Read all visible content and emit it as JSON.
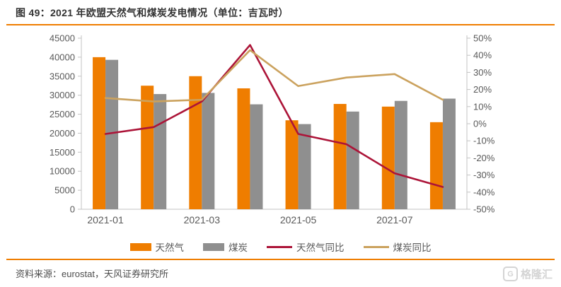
{
  "header": {
    "title": "图 49：2021 年欧盟天然气和煤炭发电情况（单位：吉瓦时）"
  },
  "colors": {
    "accent_orange": "#EF7D00",
    "bar_gas": "#EF7D00",
    "bar_coal": "#8F8F8F",
    "line_gas_yoy": "#AC1438",
    "line_coal_yoy": "#CBA25E",
    "axis_line": "#C3C3C3",
    "tick_text": "#595959"
  },
  "chart_data": {
    "type": "combo-bar-line",
    "title": "2021 年欧盟天然气和煤炭发电情况",
    "unit": "吉瓦时",
    "grid": false,
    "legend_position": "bottom",
    "categories": [
      "2021-01",
      "2021-02",
      "2021-03",
      "2021-04",
      "2021-05",
      "2021-06",
      "2021-07",
      "2021-08"
    ],
    "bar_series": [
      {
        "name": "天然气",
        "color": "#EF7D00",
        "axis": "left",
        "values": [
          40000,
          32500,
          35000,
          31800,
          23400,
          27700,
          27000,
          22900
        ]
      },
      {
        "name": "煤炭",
        "color": "#8F8F8F",
        "axis": "left",
        "values": [
          39300,
          30300,
          30600,
          27600,
          22400,
          25700,
          28500,
          29100
        ]
      }
    ],
    "line_series": [
      {
        "name": "天然气同比",
        "color": "#AC1438",
        "axis": "right",
        "values": [
          -6,
          -2,
          13,
          46,
          -6,
          -12,
          -29,
          -37
        ]
      },
      {
        "name": "煤炭同比",
        "color": "#CBA25E",
        "axis": "right",
        "values": [
          15,
          13,
          14,
          43,
          22,
          27,
          29,
          14
        ]
      }
    ],
    "left_axis": {
      "min": 0,
      "max": 45000,
      "step": 5000,
      "tick_labels": [
        "0",
        "5000",
        "10000",
        "15000",
        "20000",
        "25000",
        "30000",
        "35000",
        "40000",
        "45000"
      ]
    },
    "right_axis": {
      "min": -50,
      "max": 50,
      "step": 10,
      "tick_labels": [
        "-50%",
        "-40%",
        "-30%",
        "-20%",
        "-10%",
        "0%",
        "10%",
        "20%",
        "30%",
        "40%",
        "50%"
      ]
    },
    "x_tick_labels": [
      {
        "index": 0,
        "label": "2021-01"
      },
      {
        "index": 2,
        "label": "2021-03"
      },
      {
        "index": 4,
        "label": "2021-05"
      },
      {
        "index": 6,
        "label": "2021-07"
      }
    ]
  },
  "footer": {
    "source": "资料来源：eurostat，天风证券研究所",
    "watermark_letter": "G",
    "watermark_text": "格隆汇"
  }
}
